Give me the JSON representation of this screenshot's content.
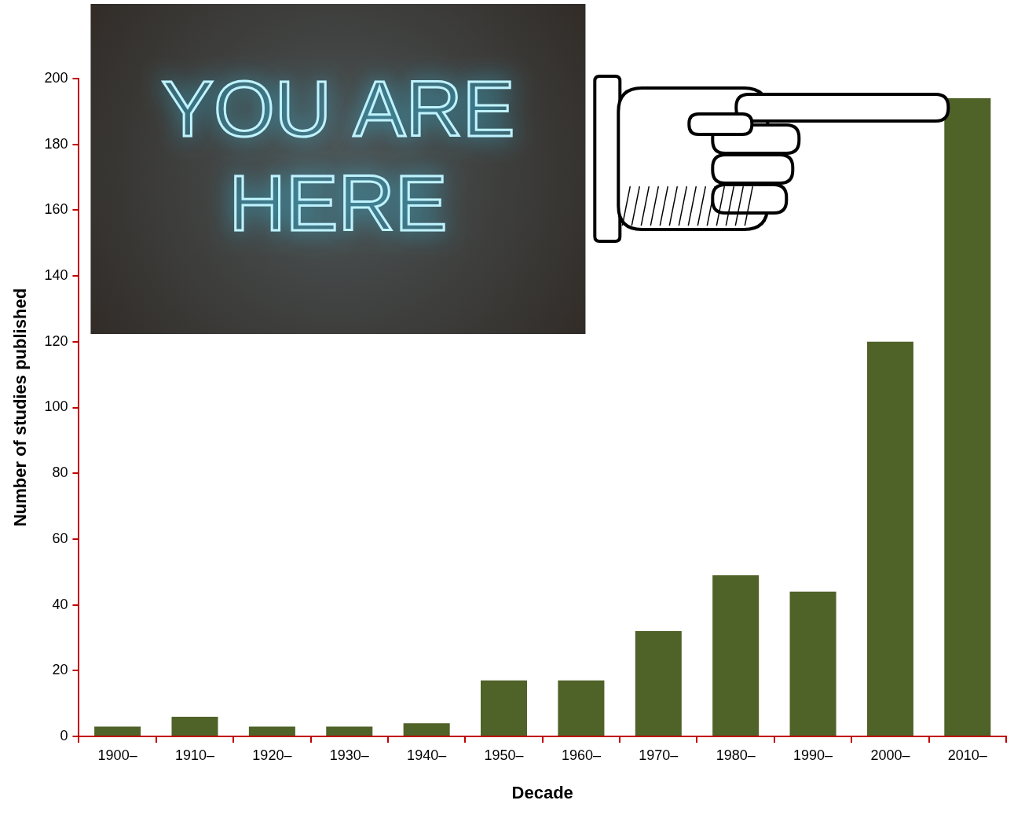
{
  "chart_data": {
    "type": "bar",
    "x_label": "Decade",
    "y_label": "Number of studies published",
    "annotation": "YOU ARE HERE",
    "categories": [
      "1900–",
      "1910–",
      "1920–",
      "1930–",
      "1940–",
      "1950–",
      "1960–",
      "1970–",
      "1980–",
      "1990–",
      "2000–",
      "2010–"
    ],
    "values": [
      3,
      6,
      3,
      3,
      4,
      17,
      17,
      32,
      49,
      44,
      120,
      194
    ],
    "color": "#4f6228",
    "ylim": [
      0,
      200
    ],
    "yticks": [
      0,
      20,
      40,
      60,
      80,
      100,
      120,
      140,
      160,
      180,
      200
    ],
    "grid": false
  }
}
